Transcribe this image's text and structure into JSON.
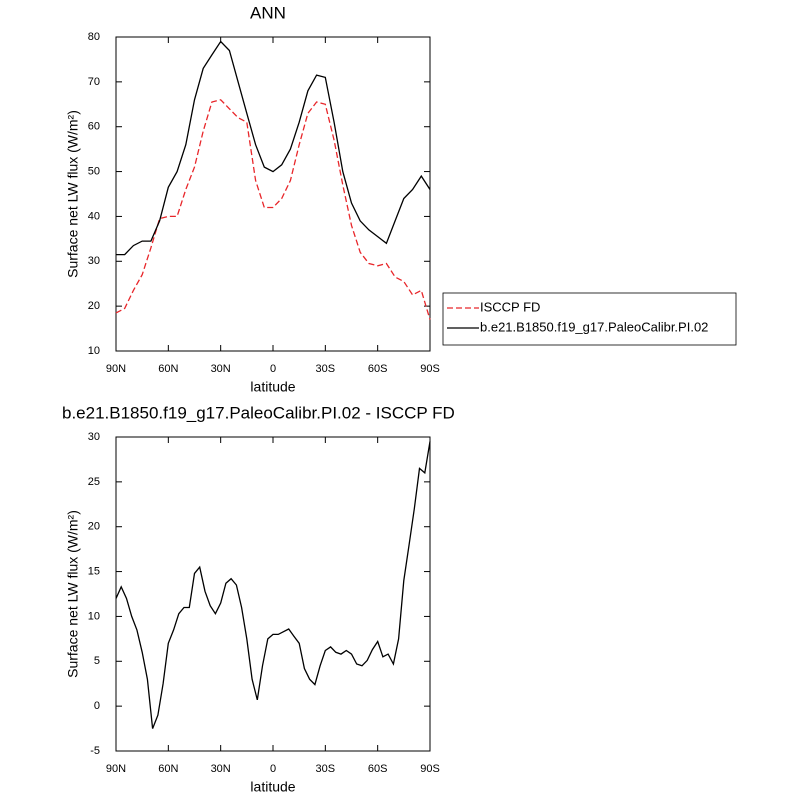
{
  "chart_data": [
    {
      "type": "line",
      "title": "ANN",
      "xlabel": "latitude",
      "ylabel": "Surface net LW flux (W/m²)",
      "xlim": [
        90,
        -90
      ],
      "xticks": [
        {
          "value": 90,
          "label": "90N"
        },
        {
          "value": 60,
          "label": "60N"
        },
        {
          "value": 30,
          "label": "30N"
        },
        0,
        {
          "value": -30,
          "label": "30S"
        },
        {
          "value": -60,
          "label": "60S"
        },
        {
          "value": -90,
          "label": "90S"
        }
      ],
      "ylim": [
        10,
        80
      ],
      "yticks": [
        10,
        20,
        30,
        40,
        50,
        60,
        70,
        80
      ],
      "legend": "outside right",
      "x": [
        90,
        85,
        80,
        75,
        70,
        65,
        60,
        55,
        50,
        45,
        40,
        35,
        30,
        25,
        20,
        15,
        10,
        5,
        0,
        -5,
        -10,
        -15,
        -20,
        -25,
        -30,
        -35,
        -40,
        -45,
        -50,
        -55,
        -60,
        -65,
        -70,
        -75,
        -80,
        -85,
        -90
      ],
      "series": [
        {
          "name": "ISCCP FD",
          "color": "#e8262a",
          "dashed": true,
          "values": [
            18.5,
            19.5,
            23.5,
            27,
            33,
            39.5,
            40,
            40,
            46,
            51,
            59,
            65.5,
            66,
            64,
            62,
            61,
            48,
            42,
            42,
            44,
            48,
            56,
            63,
            65.5,
            65,
            57,
            47,
            38,
            32,
            29.5,
            29,
            29.5,
            26.5,
            25.5,
            22.5,
            23.5,
            17
          ]
        },
        {
          "name": "b.e21.B1850.f19_g17.PaleoCalibr.PI.02",
          "color": "#000000",
          "dashed": false,
          "values": [
            31.5,
            31.5,
            33.5,
            34.5,
            34.5,
            39,
            46.5,
            50,
            56,
            66,
            73,
            76,
            79,
            77,
            70,
            63,
            56,
            51,
            50,
            51.5,
            55,
            61,
            68,
            71.5,
            71,
            61,
            50,
            43,
            39,
            37,
            35.5,
            34,
            39,
            44,
            46,
            49,
            46
          ]
        }
      ]
    },
    {
      "type": "line",
      "title": "b.e21.B1850.f19_g17.PaleoCalibr.PI.02 - ISCCP FD",
      "xlabel": "latitude",
      "ylabel": "Surface net LW flux (W/m²)",
      "xlim": [
        90,
        -90
      ],
      "xticks": [
        {
          "value": 90,
          "label": "90N"
        },
        {
          "value": 60,
          "label": "60N"
        },
        {
          "value": 30,
          "label": "30N"
        },
        0,
        {
          "value": -30,
          "label": "30S"
        },
        {
          "value": -60,
          "label": "60S"
        },
        {
          "value": -90,
          "label": "90S"
        }
      ],
      "ylim": [
        -5,
        30
      ],
      "yticks": [
        -5,
        0,
        5,
        10,
        15,
        20,
        25,
        30
      ],
      "x": [
        90,
        87,
        84,
        81,
        78,
        75,
        72,
        69,
        66,
        63,
        60,
        57,
        54,
        51,
        48,
        45,
        42,
        39,
        36,
        33,
        30,
        27,
        24,
        21,
        18,
        15,
        12,
        9,
        6,
        3,
        0,
        -3,
        -6,
        -9,
        -12,
        -15,
        -18,
        -21,
        -24,
        -27,
        -30,
        -33,
        -36,
        -39,
        -42,
        -45,
        -48,
        -51,
        -54,
        -57,
        -60,
        -63,
        -66,
        -69,
        -72,
        -75,
        -78,
        -81,
        -84,
        -87,
        -90
      ],
      "series": [
        {
          "color": "#000000",
          "dashed": false,
          "values": [
            12,
            13.3,
            12,
            10,
            8.5,
            6,
            3,
            -2.5,
            -1,
            2.5,
            7,
            8.5,
            10.3,
            11,
            11,
            14.8,
            15.5,
            12.8,
            11.2,
            10.3,
            11.5,
            13.7,
            14.2,
            13.5,
            11,
            7.5,
            3,
            0.7,
            4.5,
            7.5,
            8,
            8,
            8.3,
            8.6,
            7.8,
            7,
            4.2,
            3,
            2.4,
            4.5,
            6.2,
            6.6,
            6,
            5.8,
            6.2,
            5.8,
            4.7,
            4.5,
            5.1,
            6.3,
            7.2,
            5.5,
            5.8,
            4.7,
            7.5,
            14,
            18,
            22,
            26.5,
            26,
            29.5
          ]
        }
      ]
    }
  ]
}
